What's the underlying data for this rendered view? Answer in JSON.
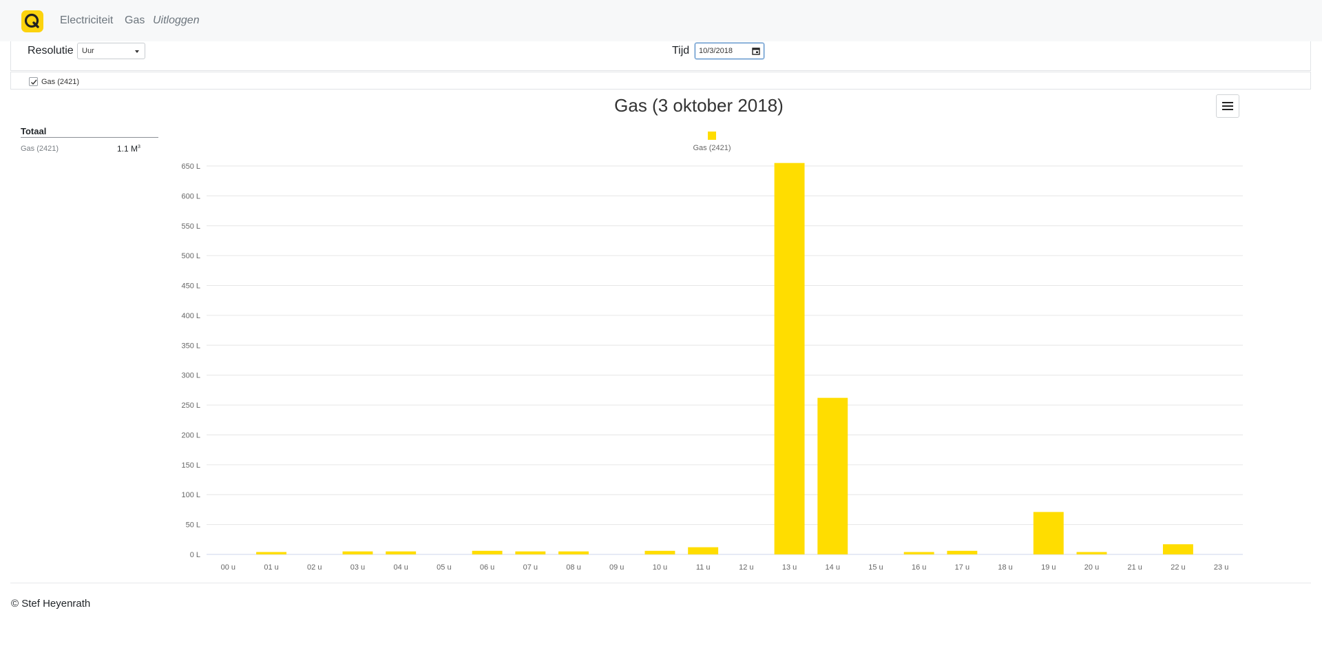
{
  "navbar": {
    "brand": "logo",
    "links": [
      "Electriciteit",
      "Gas",
      "Uitloggen"
    ]
  },
  "controls": {
    "resolutie_label": "Resolutie",
    "resolutie_value": "Uur",
    "tijd_label": "Tijd",
    "tijd_value": "10/3/2018"
  },
  "meters": [
    {
      "label": "Gas (2421)",
      "checked": true
    }
  ],
  "totals": {
    "heading": "Totaal",
    "rows": [
      {
        "name": "Gas (2421)",
        "value": "1.1 M",
        "unit_sup": "3"
      }
    ]
  },
  "chart_data": {
    "type": "bar",
    "title": "Gas (3 oktober 2018)",
    "legend": [
      "Gas (2421)"
    ],
    "legend_placement": "top-center",
    "color": "#ffdd00",
    "categories": [
      "00 u",
      "01 u",
      "02 u",
      "03 u",
      "04 u",
      "05 u",
      "06 u",
      "07 u",
      "08 u",
      "09 u",
      "10 u",
      "11 u",
      "12 u",
      "13 u",
      "14 u",
      "15 u",
      "16 u",
      "17 u",
      "18 u",
      "19 u",
      "20 u",
      "21 u",
      "22 u",
      "23 u"
    ],
    "series": [
      {
        "name": "Gas (2421)",
        "values": [
          0,
          4,
          0,
          5,
          5,
          0,
          6,
          5,
          5,
          0,
          6,
          12,
          0,
          655,
          262,
          0,
          4,
          6,
          0,
          71,
          4,
          0,
          17,
          0
        ]
      }
    ],
    "ylim": [
      0,
      650
    ],
    "yticks": [
      "0 L",
      "50 L",
      "100 L",
      "150 L",
      "200 L",
      "250 L",
      "300 L",
      "350 L",
      "400 L",
      "450 L",
      "500 L",
      "550 L",
      "600 L",
      "650 L"
    ],
    "grid": true
  },
  "footer": "© Stef Heyenrath"
}
